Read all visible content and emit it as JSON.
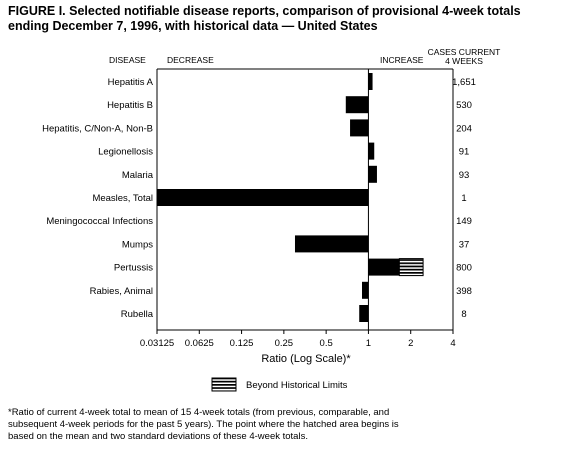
{
  "title_lines": [
    "FIGURE I. Selected notifiable disease reports, comparison of provisional 4-week totals",
    "ending December 7, 1996, with historical data — United States"
  ],
  "footnote_lines": [
    "*Ratio of current 4-week total to mean of  15 4-week totals (from previous, comparable, and",
    "subsequent 4-week periods for the past 5 years). The point where the hatched area begins is",
    "based on the mean and two standard deviations of these 4-week totals."
  ],
  "chart_data": {
    "type": "bar",
    "orientation": "horizontal",
    "headers": {
      "disease": "DISEASE",
      "decrease": "DECREASE",
      "increase": "INCREASE",
      "cases": [
        "CASES CURRENT",
        "4 WEEKS"
      ]
    },
    "xlabel": "Ratio (Log Scale)*",
    "x_scale": "log2",
    "xlim": [
      0.03125,
      4
    ],
    "x_ticks": [
      0.03125,
      0.0625,
      0.125,
      0.25,
      0.5,
      1,
      2,
      4
    ],
    "x_tick_labels": [
      "0.03125",
      "0.0625",
      "0.125",
      "0.25",
      "0.5",
      "1",
      "2",
      "4"
    ],
    "baseline": 1,
    "legend": {
      "label": "Beyond Historical Limits",
      "placement": "bottom-center"
    },
    "categories": [
      "Hepatitis A",
      "Hepatitis B",
      "Hepatitis, C/Non-A, Non-B",
      "Legionellosis",
      "Malaria",
      "Measles, Total",
      "Meningococcal Infections",
      "Mumps",
      "Pertussis",
      "Rabies, Animal",
      "Rubella"
    ],
    "ratios": [
      1.07,
      0.69,
      0.74,
      1.1,
      1.15,
      0.03125,
      1.0,
      0.3,
      1.66,
      0.9,
      0.86
    ],
    "beyond_limits_end": [
      null,
      null,
      null,
      null,
      null,
      null,
      null,
      null,
      2.45,
      null,
      null
    ],
    "cases": [
      "1,651",
      "530",
      "204",
      "91",
      "93",
      "1",
      "149",
      "37",
      "800",
      "398",
      "8"
    ]
  }
}
